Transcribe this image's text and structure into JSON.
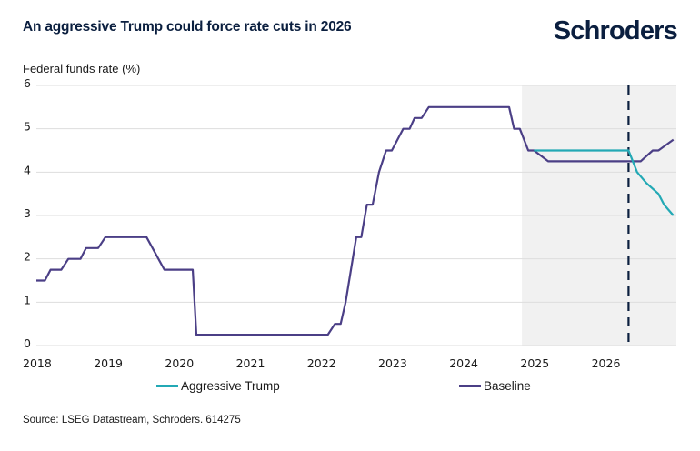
{
  "header": {
    "title": "An aggressive Trump could force rate cuts in 2026",
    "logo": "Schroders"
  },
  "footer": {
    "source": "Source: LSEG Datastream, Schroders. 614275"
  },
  "colors": {
    "aggressive": "#23a9b5",
    "baseline": "#4b3f86",
    "forecast_shade": "#f1f1f1",
    "dashed_line": "#0b1f3f",
    "grid": "#dddddd"
  },
  "chart_data": {
    "type": "line",
    "title": "An aggressive Trump could force rate cuts in 2026",
    "xlabel": "",
    "ylabel": "Federal funds rate (%)",
    "xlim": [
      2018.0,
      2027.0
    ],
    "ylim": [
      0,
      6
    ],
    "yticks": [
      0,
      1,
      2,
      3,
      4,
      5,
      6
    ],
    "xticks": [
      "2018",
      "2019",
      "2020",
      "2021",
      "2022",
      "2023",
      "2024",
      "2025",
      "2026"
    ],
    "grid": true,
    "legend_position": "bottom",
    "forecast_region": [
      2024.83,
      2026.96
    ],
    "vertical_marker_x": 2026.33,
    "series": [
      {
        "name": "Aggressive Trump",
        "points": [
          [
            2025.0,
            4.5
          ],
          [
            2026.33,
            4.5
          ],
          [
            2026.45,
            4.0
          ],
          [
            2026.58,
            3.75
          ],
          [
            2026.75,
            3.5
          ],
          [
            2026.83,
            3.25
          ],
          [
            2026.96,
            3.0
          ]
        ]
      },
      {
        "name": "Baseline",
        "points": [
          [
            2018.0,
            1.5
          ],
          [
            2018.12,
            1.5
          ],
          [
            2018.2,
            1.75
          ],
          [
            2018.35,
            1.75
          ],
          [
            2018.45,
            2.0
          ],
          [
            2018.62,
            2.0
          ],
          [
            2018.7,
            2.25
          ],
          [
            2018.87,
            2.25
          ],
          [
            2018.97,
            2.5
          ],
          [
            2019.55,
            2.5
          ],
          [
            2019.8,
            1.75
          ],
          [
            2020.2,
            1.75
          ],
          [
            2020.25,
            0.25
          ],
          [
            2022.1,
            0.25
          ],
          [
            2022.2,
            0.5
          ],
          [
            2022.28,
            0.5
          ],
          [
            2022.35,
            1.0
          ],
          [
            2022.5,
            2.5
          ],
          [
            2022.57,
            2.5
          ],
          [
            2022.65,
            3.25
          ],
          [
            2022.73,
            3.25
          ],
          [
            2022.82,
            4.0
          ],
          [
            2022.92,
            4.5
          ],
          [
            2023.0,
            4.5
          ],
          [
            2023.16,
            5.0
          ],
          [
            2023.25,
            5.0
          ],
          [
            2023.32,
            5.25
          ],
          [
            2023.42,
            5.25
          ],
          [
            2023.52,
            5.5
          ],
          [
            2024.65,
            5.5
          ],
          [
            2024.72,
            5.0
          ],
          [
            2024.8,
            5.0
          ],
          [
            2024.92,
            4.5
          ],
          [
            2025.0,
            4.5
          ],
          [
            2025.2,
            4.25
          ],
          [
            2026.5,
            4.25
          ],
          [
            2026.67,
            4.5
          ],
          [
            2026.75,
            4.5
          ],
          [
            2026.96,
            4.75
          ]
        ]
      }
    ]
  }
}
